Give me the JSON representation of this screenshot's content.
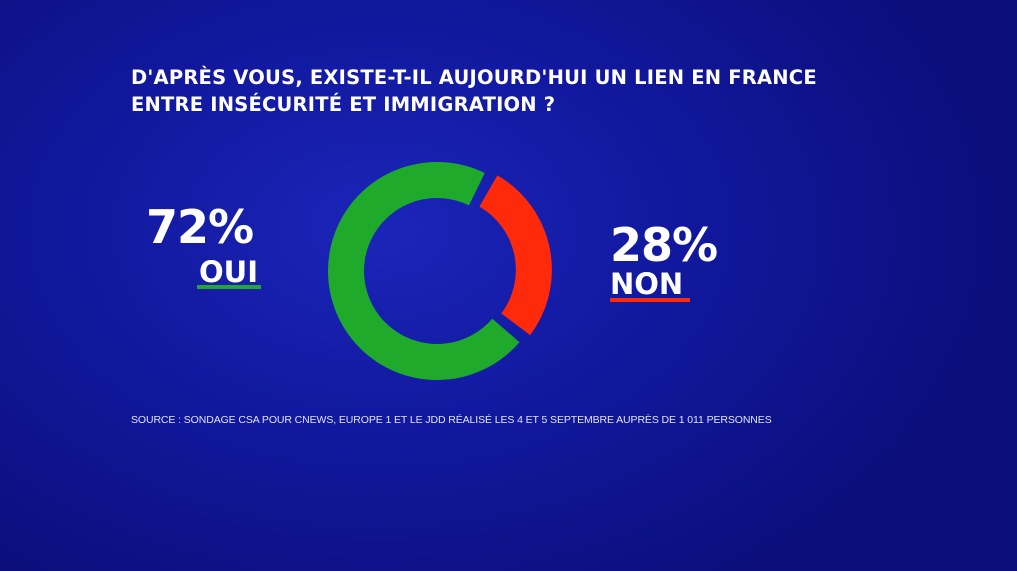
{
  "title_line1": "D'APRÈS VOUS, EXISTE-T-IL AUJOURD'HUI UN LIEN EN FRANCE",
  "title_line2": "ENTRE INSÉCURITÉ ET IMMIGRATION ?",
  "source": "SOURCE : SONDAGE CSA POUR CNEWS, EUROPE 1 ET LE JDD RÉALISÉ LES 4 ET 5 SEPTEMBRE AUPRÈS DE 1 011 PERSONNES",
  "chart_data": {
    "type": "pie",
    "variant": "donut",
    "title": "D'APRÈS VOUS, EXISTE-T-IL AUJOURD'HUI UN LIEN EN FRANCE ENTRE INSÉCURITÉ ET IMMIGRATION ?",
    "slices": [
      {
        "label": "OUI",
        "value": 72,
        "display": "72%",
        "color": "#1faa2c"
      },
      {
        "label": "NON",
        "value": 28,
        "display": "28%",
        "color": "#ff2a0a"
      }
    ]
  }
}
